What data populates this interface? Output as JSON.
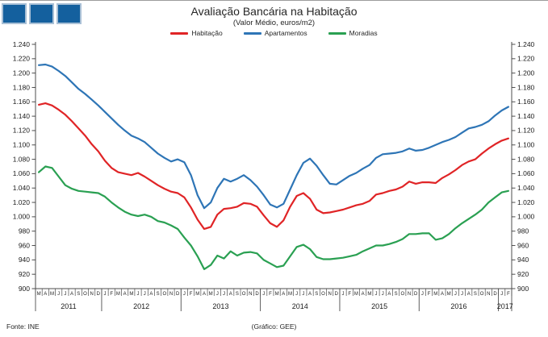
{
  "logo": {
    "square_count": 3,
    "fill": "#14609e",
    "border": "#a9c0d6"
  },
  "header": {
    "title": "Avaliação Bancária na Habitação",
    "subtitle": "(Valor Médio, euros/m2)"
  },
  "legend": {
    "items": [
      {
        "label": "Habitação",
        "color": "#e02426"
      },
      {
        "label": "Apartamentos",
        "color": "#2e75b6"
      },
      {
        "label": "Moradias",
        "color": "#2aa052"
      }
    ]
  },
  "chart_data": {
    "type": "line",
    "title": "Avaliação Bancária na Habitação",
    "subtitle": "(Valor Médio, euros/m2)",
    "xlabel": "",
    "ylabel": "euros/m2",
    "ylim": [
      900,
      1240
    ],
    "grid": false,
    "legend_position": "top",
    "y_axis": {
      "min": 900,
      "max": 1240,
      "step": 20,
      "mirrored_right": true,
      "tick_labels": [
        "1.240",
        "1.220",
        "1.200",
        "1.180",
        "1.160",
        "1.140",
        "1.120",
        "1.100",
        "1.080",
        "1.060",
        "1.040",
        "1.020",
        "1.000",
        "980",
        "960",
        "940",
        "920",
        "900"
      ]
    },
    "x_axis": {
      "start": "2011-03",
      "end": "2017-02",
      "month_letters": "MAMJJASONDJFMAMJJASONDJFMAMJJASONDJFMAMJJASONDJFMAMJJASONDJFMAMJJASONDJF",
      "years": [
        "2011",
        "2012",
        "2013",
        "2014",
        "2015",
        "2016",
        "2017"
      ],
      "year_month_counts": [
        10,
        12,
        12,
        12,
        12,
        12,
        2
      ]
    },
    "series": [
      {
        "name": "Habitação",
        "color": "#e02426",
        "values": [
          1156,
          1158,
          1155,
          1149,
          1142,
          1133,
          1123,
          1113,
          1101,
          1091,
          1078,
          1068,
          1062,
          1060,
          1058,
          1061,
          1056,
          1050,
          1044,
          1039,
          1035,
          1033,
          1027,
          1013,
          996,
          983,
          986,
          1003,
          1011,
          1012,
          1014,
          1019,
          1018,
          1014,
          1002,
          991,
          986,
          995,
          1014,
          1029,
          1033,
          1025,
          1010,
          1005,
          1006,
          1008,
          1010,
          1013,
          1016,
          1018,
          1022,
          1031,
          1033,
          1036,
          1038,
          1042,
          1049,
          1046,
          1048,
          1048,
          1047,
          1054,
          1059,
          1065,
          1072,
          1077,
          1080,
          1088,
          1095,
          1101,
          1106,
          1109
        ]
      },
      {
        "name": "Apartamentos",
        "color": "#2e75b6",
        "values": [
          1211,
          1212,
          1209,
          1203,
          1196,
          1187,
          1178,
          1171,
          1163,
          1155,
          1146,
          1137,
          1128,
          1120,
          1113,
          1109,
          1104,
          1096,
          1088,
          1082,
          1077,
          1080,
          1076,
          1058,
          1030,
          1012,
          1020,
          1040,
          1053,
          1049,
          1053,
          1058,
          1051,
          1042,
          1030,
          1017,
          1013,
          1018,
          1038,
          1058,
          1075,
          1081,
          1071,
          1058,
          1046,
          1045,
          1051,
          1057,
          1061,
          1067,
          1072,
          1082,
          1087,
          1088,
          1089,
          1091,
          1095,
          1092,
          1093,
          1096,
          1100,
          1104,
          1107,
          1111,
          1117,
          1123,
          1125,
          1128,
          1133,
          1141,
          1148,
          1153
        ]
      },
      {
        "name": "Moradias",
        "color": "#2aa052",
        "values": [
          1062,
          1070,
          1068,
          1056,
          1044,
          1039,
          1036,
          1035,
          1034,
          1033,
          1028,
          1020,
          1013,
          1007,
          1003,
          1001,
          1003,
          1000,
          994,
          992,
          988,
          983,
          971,
          960,
          945,
          927,
          933,
          946,
          942,
          952,
          946,
          950,
          951,
          949,
          940,
          935,
          930,
          932,
          945,
          958,
          961,
          955,
          944,
          941,
          941,
          942,
          943,
          945,
          947,
          952,
          956,
          960,
          960,
          962,
          965,
          969,
          976,
          976,
          977,
          977,
          968,
          970,
          976,
          984,
          991,
          997,
          1003,
          1010,
          1020,
          1027,
          1034,
          1036
        ]
      }
    ]
  },
  "footer": {
    "source": "Fonte: INE",
    "credit": "(Gráfico: GEE)"
  }
}
